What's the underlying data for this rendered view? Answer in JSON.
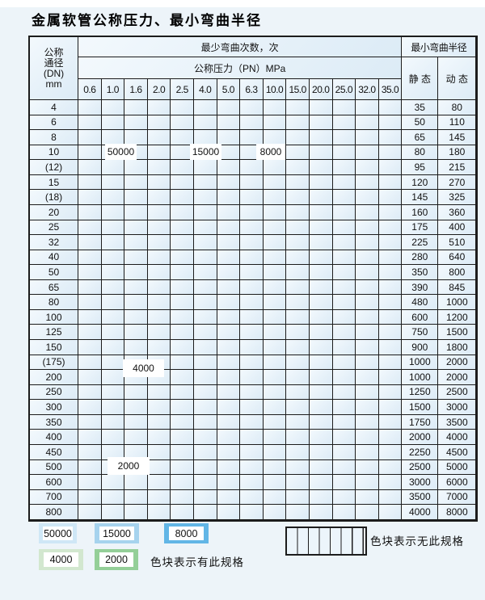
{
  "page": {
    "title": "金属软管公称压力、最小弯曲半径"
  },
  "table": {
    "header": {
      "dn_lines": [
        "公称",
        "通径",
        "(DN)",
        "mm"
      ],
      "bend_cycles": "最少弯曲次数，次",
      "min_radius": "最小弯曲半径",
      "pressure_title": "公称压力（PN）MPa",
      "static_label": "静 态",
      "dynamic_label": "动 态",
      "pressures": [
        "0.6",
        "1.0",
        "1.6",
        "2.0",
        "2.5",
        "4.0",
        "5.0",
        "6.3",
        "10.0",
        "15.0",
        "20.0",
        "25.0",
        "32.0",
        "35.0"
      ]
    },
    "zone_codes": {
      "1": "cycles-50000",
      "2": "cycles-15000",
      "3": "cycles-8000",
      "4": "cycles-4000",
      "5": "cycles-2000",
      "x": "no-spec"
    },
    "rows": [
      {
        "dn": "4",
        "pattern": "11111222333333",
        "static": "35",
        "dynamic": "80"
      },
      {
        "dn": "6",
        "pattern": "111112223333xx",
        "static": "50",
        "dynamic": "110"
      },
      {
        "dn": "8",
        "pattern": "111112223333xx",
        "static": "65",
        "dynamic": "145"
      },
      {
        "dn": "10",
        "pattern": "111112223333xx",
        "static": "80",
        "dynamic": "180"
      },
      {
        "dn": "(12)",
        "pattern": "111112223333xx",
        "static": "95",
        "dynamic": "215"
      },
      {
        "dn": "15",
        "pattern": "111112223333xx",
        "static": "120",
        "dynamic": "270"
      },
      {
        "dn": "(18)",
        "pattern": "11111222333xxx",
        "static": "145",
        "dynamic": "325"
      },
      {
        "dn": "20",
        "pattern": "11111222333xxx",
        "static": "160",
        "dynamic": "360"
      },
      {
        "dn": "25",
        "pattern": "1111122233xxxx",
        "static": "175",
        "dynamic": "400"
      },
      {
        "dn": "32",
        "pattern": "111112333xxxxx",
        "static": "225",
        "dynamic": "510"
      },
      {
        "dn": "40",
        "pattern": "111112333xxxxx",
        "static": "280",
        "dynamic": "640"
      },
      {
        "dn": "50",
        "pattern": "11111233xxxxxx",
        "static": "350",
        "dynamic": "800"
      },
      {
        "dn": "65",
        "pattern": "11222233xxxxxx",
        "static": "390",
        "dynamic": "845"
      },
      {
        "dn": "80",
        "pattern": "1222233xxxxxxx",
        "static": "480",
        "dynamic": "1000"
      },
      {
        "dn": "100",
        "pattern": "444444xxxxxxxx",
        "static": "600",
        "dynamic": "1200"
      },
      {
        "dn": "125",
        "pattern": "444444xxxxxxxx",
        "static": "750",
        "dynamic": "1500"
      },
      {
        "dn": "150",
        "pattern": "444444xxxxxxxx",
        "static": "900",
        "dynamic": "1800"
      },
      {
        "dn": "(175)",
        "pattern": "444444xxxxxxxx",
        "static": "1000",
        "dynamic": "2000"
      },
      {
        "dn": "200",
        "pattern": "444444xxxxxxxx",
        "static": "1000",
        "dynamic": "2000"
      },
      {
        "dn": "250",
        "pattern": "444444xxxxxxxx",
        "static": "1250",
        "dynamic": "2500"
      },
      {
        "dn": "300",
        "pattern": "444444xxxxxxxx",
        "static": "1500",
        "dynamic": "3000"
      },
      {
        "dn": "350",
        "pattern": "55555xxxxxxxxx",
        "static": "1750",
        "dynamic": "3500"
      },
      {
        "dn": "400",
        "pattern": "55555xxxxxxxxx",
        "static": "2000",
        "dynamic": "4000"
      },
      {
        "dn": "450",
        "pattern": "55555xxxxxxxxx",
        "static": "2250",
        "dynamic": "4500"
      },
      {
        "dn": "500",
        "pattern": "55555xxxxxxxxx",
        "static": "2500",
        "dynamic": "5000"
      },
      {
        "dn": "600",
        "pattern": "5555xxxxxxxxxx",
        "static": "3000",
        "dynamic": "6000"
      },
      {
        "dn": "700",
        "pattern": "555xxxxxxxxxxx",
        "static": "3500",
        "dynamic": "7000"
      },
      {
        "dn": "800",
        "pattern": "555xxxxxxxxxxx",
        "static": "4000",
        "dynamic": "8000"
      }
    ]
  },
  "zone_labels": {
    "z50000": "50000",
    "z15000": "15000",
    "z8000": "8000",
    "z4000": "4000",
    "z2000": "2000"
  },
  "legend": {
    "items": [
      {
        "label": "50000",
        "color": "#cfe7f6"
      },
      {
        "label": "15000",
        "color": "#a6d3ee"
      },
      {
        "label": "8000",
        "color": "#62b6e6"
      },
      {
        "label": "4000",
        "color": "#d2e7cf"
      },
      {
        "label": "2000",
        "color": "#94cf98"
      }
    ],
    "has_spec_text": "色块表示有此规格",
    "no_spec_text": "色块表示无此规格"
  },
  "colors": {
    "cycles_50000": "#cfe7f6",
    "cycles_15000": "#a6d3ee",
    "cycles_8000": "#62b6e6",
    "cycles_4000": "#d2e7cf",
    "cycles_2000": "#94cf98",
    "grid_line": "#1c1c1c",
    "page_bg": "#edf4f9"
  }
}
